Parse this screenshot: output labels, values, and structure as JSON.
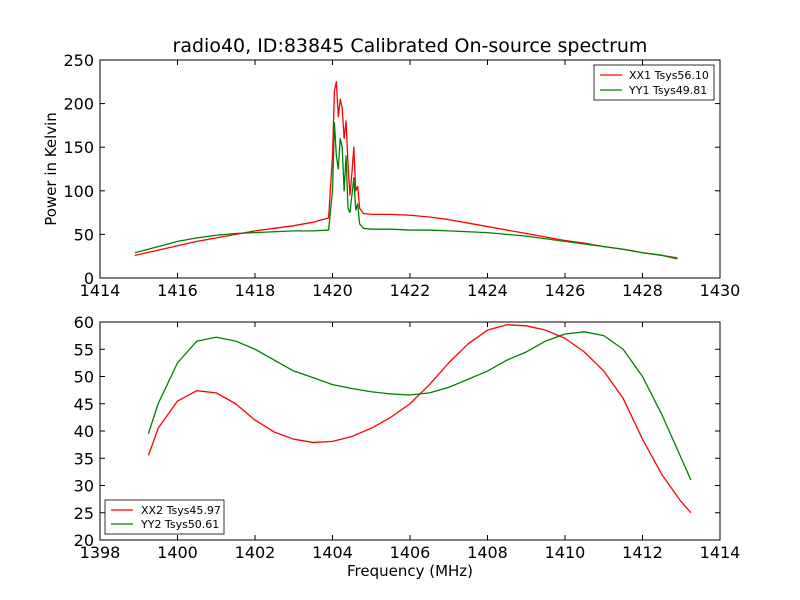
{
  "chart_data": [
    {
      "type": "line",
      "title": "radio40, ID:83845 Calibrated On-source spectrum",
      "xlabel": "",
      "ylabel": "Power in Kelvin",
      "xlim": [
        1414,
        1430
      ],
      "ylim": [
        0,
        250
      ],
      "xticks": [
        "1414",
        "1416",
        "1418",
        "1420",
        "1422",
        "1424",
        "1426",
        "1428",
        "1430"
      ],
      "yticks": [
        "0",
        "50",
        "100",
        "150",
        "200",
        "250"
      ],
      "legend_position": "top-right",
      "series": [
        {
          "name": "XX1 Tsys56.10",
          "color": "#ff0000",
          "x": [
            1414.9,
            1415.5,
            1416.0,
            1416.5,
            1417.0,
            1417.5,
            1418.0,
            1418.5,
            1419.0,
            1419.5,
            1419.9,
            1420.0,
            1420.05,
            1420.1,
            1420.15,
            1420.2,
            1420.25,
            1420.3,
            1420.35,
            1420.4,
            1420.45,
            1420.5,
            1420.55,
            1420.6,
            1420.65,
            1420.7,
            1420.8,
            1421.0,
            1421.5,
            1422.0,
            1422.5,
            1423.0,
            1423.5,
            1424.0,
            1424.5,
            1425.0,
            1425.5,
            1426.0,
            1426.5,
            1427.0,
            1427.5,
            1428.0,
            1428.5,
            1428.9
          ],
          "y": [
            26,
            32,
            37,
            42,
            46,
            50,
            54,
            57,
            60,
            64,
            69,
            140,
            215,
            225,
            185,
            205,
            195,
            160,
            180,
            130,
            95,
            120,
            150,
            100,
            105,
            80,
            74,
            73,
            73,
            72,
            70,
            67,
            63,
            59,
            55,
            51,
            47,
            43,
            40,
            36,
            33,
            29,
            26,
            23
          ]
        },
        {
          "name": "YY1 Tsys49.81",
          "color": "#008000",
          "x": [
            1414.9,
            1415.5,
            1416.0,
            1416.5,
            1417.0,
            1417.5,
            1418.0,
            1418.5,
            1419.0,
            1419.5,
            1419.9,
            1420.0,
            1420.05,
            1420.1,
            1420.15,
            1420.2,
            1420.25,
            1420.3,
            1420.35,
            1420.4,
            1420.45,
            1420.5,
            1420.55,
            1420.6,
            1420.65,
            1420.7,
            1420.8,
            1421.0,
            1421.5,
            1422.0,
            1422.5,
            1423.0,
            1423.5,
            1424.0,
            1424.5,
            1425.0,
            1425.5,
            1426.0,
            1426.5,
            1427.0,
            1427.5,
            1428.0,
            1428.5,
            1428.9
          ],
          "y": [
            29,
            36,
            42,
            46,
            49,
            51,
            52,
            53,
            54,
            54,
            55,
            100,
            178,
            140,
            125,
            160,
            150,
            100,
            140,
            80,
            75,
            95,
            115,
            78,
            85,
            62,
            57,
            56,
            56,
            55,
            55,
            54,
            53,
            52,
            50,
            48,
            45,
            42,
            39,
            36,
            33,
            29,
            26,
            22
          ]
        }
      ]
    },
    {
      "type": "line",
      "title": "",
      "xlabel": "Frequency (MHz)",
      "ylabel": "",
      "xlim": [
        1398,
        1414
      ],
      "ylim": [
        20,
        60
      ],
      "xticks": [
        "1398",
        "1400",
        "1402",
        "1404",
        "1406",
        "1408",
        "1410",
        "1412",
        "1414"
      ],
      "yticks": [
        "20",
        "25",
        "30",
        "35",
        "40",
        "45",
        "50",
        "55",
        "60"
      ],
      "legend_position": "bottom-left",
      "series": [
        {
          "name": "XX2 Tsys45.97",
          "color": "#ff0000",
          "x": [
            1399.25,
            1399.5,
            1400.0,
            1400.5,
            1401.0,
            1401.5,
            1402.0,
            1402.5,
            1403.0,
            1403.5,
            1404.0,
            1404.5,
            1405.0,
            1405.5,
            1406.0,
            1406.5,
            1407.0,
            1407.5,
            1408.0,
            1408.5,
            1409.0,
            1409.5,
            1410.0,
            1410.5,
            1411.0,
            1411.5,
            1412.0,
            1412.5,
            1413.0,
            1413.25
          ],
          "y": [
            35.5,
            40.5,
            45.5,
            47.4,
            47.0,
            45.0,
            42.0,
            39.8,
            38.5,
            37.9,
            38.1,
            39.0,
            40.5,
            42.5,
            45.0,
            48.5,
            52.5,
            56.0,
            58.5,
            59.5,
            59.3,
            58.5,
            57.0,
            54.5,
            51.0,
            46.0,
            38.5,
            32.0,
            27.0,
            25.0
          ]
        },
        {
          "name": "YY2 Tsys50.61",
          "color": "#008000",
          "x": [
            1399.25,
            1399.5,
            1400.0,
            1400.5,
            1401.0,
            1401.5,
            1402.0,
            1402.5,
            1403.0,
            1403.5,
            1404.0,
            1404.5,
            1405.0,
            1405.5,
            1406.0,
            1406.5,
            1407.0,
            1407.5,
            1408.0,
            1408.5,
            1409.0,
            1409.5,
            1410.0,
            1410.5,
            1411.0,
            1411.5,
            1412.0,
            1412.5,
            1413.0,
            1413.25
          ],
          "y": [
            39.5,
            45.0,
            52.5,
            56.5,
            57.2,
            56.5,
            55.0,
            53.0,
            51.0,
            49.8,
            48.5,
            47.8,
            47.2,
            46.8,
            46.6,
            47.0,
            48.0,
            49.5,
            51.0,
            53.0,
            54.5,
            56.5,
            57.8,
            58.2,
            57.5,
            55.0,
            50.0,
            43.0,
            35.0,
            31.0
          ]
        }
      ]
    }
  ]
}
